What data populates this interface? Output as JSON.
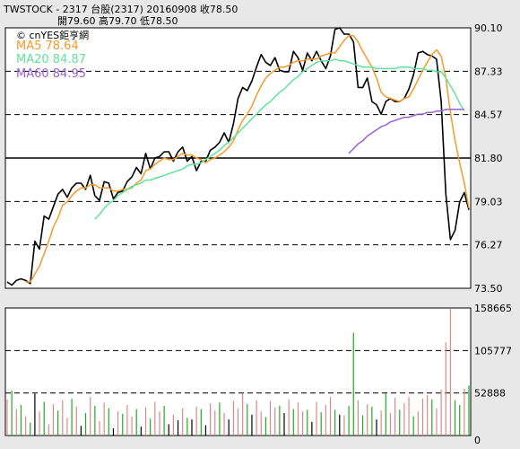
{
  "header": {
    "line1": "TWSTOCK  -  2317   台股(2317)  20160908     收78.50",
    "line2": "開79.60     高79.70     低78.50"
  },
  "watermark": "© cnYES鉅亨網",
  "legend": [
    {
      "label": "MA5 78.64",
      "color": "#f39a2a"
    },
    {
      "label": "MA20 84.87",
      "color": "#5fe39c"
    },
    {
      "label": "MA60 84.95",
      "color": "#9b5fd6"
    }
  ],
  "chart_data": [
    {
      "type": "line",
      "price_axis_ticks": [
        "90.10",
        "87.33",
        "84.57",
        "81.80",
        "79.03",
        "76.27",
        "73.50"
      ],
      "ylim": [
        73.5,
        90.1
      ],
      "grid": "dashed horizontal at 87.33, 84.57, 79.03, 76.27; solid at 81.80",
      "series": [
        {
          "name": "close",
          "color": "#000000",
          "values": [
            73.9,
            73.7,
            74.0,
            74.1,
            74.0,
            73.8,
            76.5,
            76.0,
            78.1,
            77.9,
            78.7,
            79.5,
            79.8,
            79.3,
            79.9,
            80.2,
            80.2,
            79.8,
            80.7,
            79.4,
            79.1,
            80.3,
            80.2,
            79.2,
            79.6,
            79.7,
            80.3,
            80.6,
            81.2,
            80.8,
            82.1,
            81.1,
            81.8,
            81.9,
            82.2,
            82.2,
            81.6,
            82.2,
            82.5,
            81.6,
            81.9,
            81.0,
            81.6,
            81.6,
            82.3,
            82.5,
            82.8,
            83.4,
            82.8,
            84.0,
            85.6,
            86.3,
            86.1,
            86.7,
            87.6,
            88.4,
            87.9,
            87.7,
            88.2,
            87.4,
            87.3,
            87.3,
            88.6,
            88.2,
            87.4,
            88.5,
            88.0,
            88.6,
            88.0,
            87.5,
            88.3,
            90.0,
            90.1,
            89.7,
            89.7,
            89.2,
            86.3,
            86.3,
            86.9,
            85.4,
            85.2,
            84.6,
            85.4,
            85.6,
            85.4,
            85.4,
            85.6,
            86.2,
            87.1,
            88.5,
            88.6,
            88.4,
            88.3,
            88.1,
            85.4,
            79.5,
            76.6,
            77.2,
            79.0,
            79.6,
            78.5
          ]
        },
        {
          "name": "MA5",
          "color": "#f39a2a",
          "values": [
            null,
            null,
            null,
            null,
            73.9,
            73.9,
            74.4,
            74.9,
            75.7,
            76.5,
            77.4,
            78.0,
            78.8,
            79.0,
            79.4,
            79.7,
            79.9,
            79.9,
            80.1,
            80.1,
            79.9,
            79.9,
            79.9,
            79.7,
            79.7,
            79.8,
            79.8,
            79.9,
            80.2,
            80.4,
            81.0,
            81.1,
            81.4,
            81.6,
            81.8,
            81.7,
            81.7,
            81.9,
            82.1,
            82.0,
            82.0,
            81.8,
            81.7,
            81.5,
            81.7,
            81.8,
            82.0,
            82.2,
            82.5,
            82.9,
            83.6,
            84.2,
            84.6,
            85.1,
            85.8,
            86.4,
            86.9,
            87.2,
            87.4,
            87.6,
            87.6,
            87.7,
            87.9,
            88.0,
            88.0,
            88.1,
            88.1,
            88.1,
            88.3,
            88.4,
            88.5,
            88.5,
            88.9,
            89.3,
            89.6,
            89.6,
            89.2,
            88.6,
            88.1,
            87.6,
            86.9,
            86.0,
            85.7,
            85.6,
            85.5,
            85.4,
            85.6,
            85.7,
            86.2,
            86.8,
            87.4,
            87.9,
            88.4,
            88.7,
            88.3,
            86.9,
            84.7,
            82.9,
            81.5,
            80.2,
            78.6
          ]
        },
        {
          "name": "MA20",
          "color": "#5fe39c",
          "values": [
            null,
            null,
            null,
            null,
            null,
            null,
            null,
            null,
            null,
            null,
            null,
            null,
            null,
            null,
            null,
            null,
            null,
            null,
            null,
            77.9,
            78.2,
            78.6,
            78.9,
            79.1,
            79.4,
            79.6,
            79.8,
            80.0,
            80.1,
            80.2,
            80.4,
            80.4,
            80.5,
            80.6,
            80.7,
            80.8,
            80.9,
            81.0,
            81.1,
            81.3,
            81.4,
            81.4,
            81.5,
            81.7,
            81.9,
            82.1,
            82.3,
            82.6,
            82.8,
            83.1,
            83.4,
            83.7,
            84.0,
            84.3,
            84.6,
            84.9,
            85.2,
            85.4,
            85.7,
            86.0,
            86.2,
            86.5,
            86.8,
            87.0,
            87.3,
            87.5,
            87.7,
            87.9,
            88.0,
            88.0,
            88.0,
            88.1,
            88.0,
            88.0,
            87.9,
            87.8,
            87.7,
            87.6,
            87.6,
            87.6,
            87.5,
            87.5,
            87.5,
            87.5,
            87.5,
            87.6,
            87.6,
            87.6,
            87.5,
            87.5,
            87.5,
            87.4,
            87.4,
            87.3,
            87.3,
            86.9,
            86.4,
            85.9,
            85.3,
            84.8,
            null
          ]
        },
        {
          "name": "MA60",
          "color": "#9b5fd6",
          "values": [
            null,
            null,
            null,
            null,
            null,
            null,
            null,
            null,
            null,
            null,
            null,
            null,
            null,
            null,
            null,
            null,
            null,
            null,
            null,
            null,
            null,
            null,
            null,
            null,
            null,
            null,
            null,
            null,
            null,
            null,
            null,
            null,
            null,
            null,
            null,
            null,
            null,
            null,
            null,
            null,
            null,
            null,
            null,
            null,
            null,
            null,
            null,
            null,
            null,
            null,
            null,
            null,
            null,
            null,
            null,
            null,
            null,
            null,
            null,
            null,
            null,
            null,
            null,
            null,
            null,
            null,
            null,
            null,
            null,
            null,
            null,
            null,
            null,
            null,
            82.1,
            82.4,
            82.7,
            82.9,
            83.2,
            83.4,
            83.6,
            83.8,
            83.9,
            84.1,
            84.2,
            84.3,
            84.4,
            84.4,
            84.5,
            84.6,
            84.6,
            84.7,
            84.7,
            84.8,
            84.8,
            84.9,
            84.9,
            84.9,
            84.9,
            84.9,
            null
          ]
        }
      ]
    },
    {
      "type": "bar",
      "volume_axis_ticks": [
        "158665",
        "105777",
        "52888",
        "0"
      ],
      "ylim": [
        0,
        158665
      ],
      "grid": "dashed horizontal at 105777 and 52888",
      "series": [
        {
          "name": "volume",
          "values": [
            45000,
            56000,
            33000,
            38000,
            24000,
            16000,
            52000,
            30000,
            42000,
            14000,
            39000,
            31000,
            44000,
            22000,
            46000,
            36000,
            12000,
            28000,
            48000,
            37000,
            18000,
            41000,
            34000,
            9000,
            30000,
            27000,
            38000,
            24000,
            33000,
            11000,
            35000,
            21000,
            42000,
            30000,
            37000,
            14000,
            26000,
            19000,
            34000,
            22000,
            20000,
            36000,
            33000,
            13000,
            40000,
            31000,
            41000,
            28000,
            20000,
            43000,
            34000,
            52000,
            39000,
            26000,
            44000,
            30000,
            23000,
            43000,
            35000,
            37000,
            28000,
            45000,
            33000,
            41000,
            30000,
            32000,
            17000,
            42000,
            29000,
            38000,
            48000,
            32000,
            26000,
            25000,
            37000,
            128000,
            44000,
            25000,
            39000,
            36000,
            20000,
            31000,
            52000,
            28000,
            47000,
            32000,
            40000,
            48000,
            24000,
            30000,
            46000,
            50000,
            45000,
            34000,
            57000,
            116000,
            162000,
            44000,
            38000,
            58000,
            62000
          ],
          "colors": [
            "#d88",
            "#2a2",
            "#d88",
            "#2a2",
            "#d88",
            "#2a2",
            "#000",
            "#d88",
            "#2a2",
            "#d88",
            "#d88",
            "#2a2",
            "#d88",
            "#d88",
            "#2a2",
            "#d88",
            "#000",
            "#2a2",
            "#d88",
            "#2a2",
            "#d88",
            "#d88",
            "#2a2",
            "#000",
            "#d88",
            "#2a2",
            "#d88",
            "#d88",
            "#2a2",
            "#000",
            "#d88",
            "#2a2",
            "#d88",
            "#d88",
            "#2a2",
            "#000",
            "#d88",
            "#000",
            "#d88",
            "#2a2",
            "#000",
            "#d88",
            "#2a2",
            "#000",
            "#d88",
            "#d88",
            "#2a2",
            "#d88",
            "#000",
            "#d88",
            "#d88",
            "#d88",
            "#2a2",
            "#000",
            "#d88",
            "#d88",
            "#2a2",
            "#d88",
            "#d88",
            "#2a2",
            "#000",
            "#d88",
            "#2a2",
            "#d88",
            "#d88",
            "#2a2",
            "#000",
            "#d88",
            "#2a2",
            "#d88",
            "#d88",
            "#2a2",
            "#000",
            "#d88",
            "#2a2",
            "#2a2",
            "#d88",
            "#2a2",
            "#d88",
            "#2a2",
            "#000",
            "#d88",
            "#2a2",
            "#d88",
            "#d88",
            "#2a2",
            "#d88",
            "#d88",
            "#2a2",
            "#d88",
            "#d88",
            "#d88",
            "#2a2",
            "#d88",
            "#d88",
            "#d88",
            "#d88",
            "#2a2",
            "#2a2",
            "#d88",
            "#2a2"
          ]
        }
      ]
    }
  ]
}
